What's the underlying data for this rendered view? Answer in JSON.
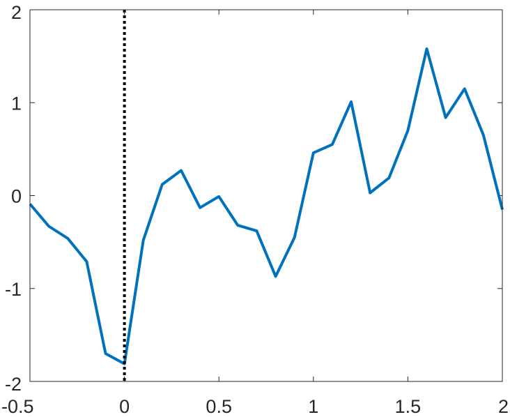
{
  "chart_data": {
    "type": "line",
    "title": "",
    "xlabel": "",
    "ylabel": "",
    "xlim": [
      -0.5,
      2
    ],
    "ylim": [
      -2,
      2
    ],
    "x_ticks": [
      {
        "value": -0.5,
        "label": "-0.5"
      },
      {
        "value": 0,
        "label": "0"
      },
      {
        "value": 0.5,
        "label": "0.5"
      },
      {
        "value": 1,
        "label": "1"
      },
      {
        "value": 1.5,
        "label": "1.5"
      },
      {
        "value": 2,
        "label": "2"
      }
    ],
    "y_ticks": [
      {
        "value": -2,
        "label": "-2"
      },
      {
        "value": -1,
        "label": "-1"
      },
      {
        "value": 0,
        "label": "0"
      },
      {
        "value": 1,
        "label": "1"
      },
      {
        "value": 2,
        "label": "2"
      }
    ],
    "grid": false,
    "legend": "none",
    "series": [
      {
        "color": "#0072bd",
        "x": [
          -0.5,
          -0.4,
          -0.3,
          -0.2,
          -0.1,
          0,
          0.1,
          0.2,
          0.3,
          0.4,
          0.5,
          0.6,
          0.7,
          0.8,
          0.9,
          1.0,
          1.1,
          1.2,
          1.3,
          1.4,
          1.5,
          1.6,
          1.7,
          1.8,
          1.9,
          2.0
        ],
        "y": [
          -0.09,
          -0.33,
          -0.46,
          -0.71,
          -1.7,
          -1.81,
          -0.48,
          0.12,
          0.27,
          -0.13,
          -0.01,
          -0.32,
          -0.38,
          -0.87,
          -0.45,
          0.46,
          0.55,
          1.01,
          0.03,
          0.19,
          0.7,
          1.58,
          0.84,
          1.15,
          0.65,
          -0.15
        ]
      }
    ],
    "reference_line": {
      "x": 0,
      "style": "dotted",
      "color": "#000000"
    }
  }
}
